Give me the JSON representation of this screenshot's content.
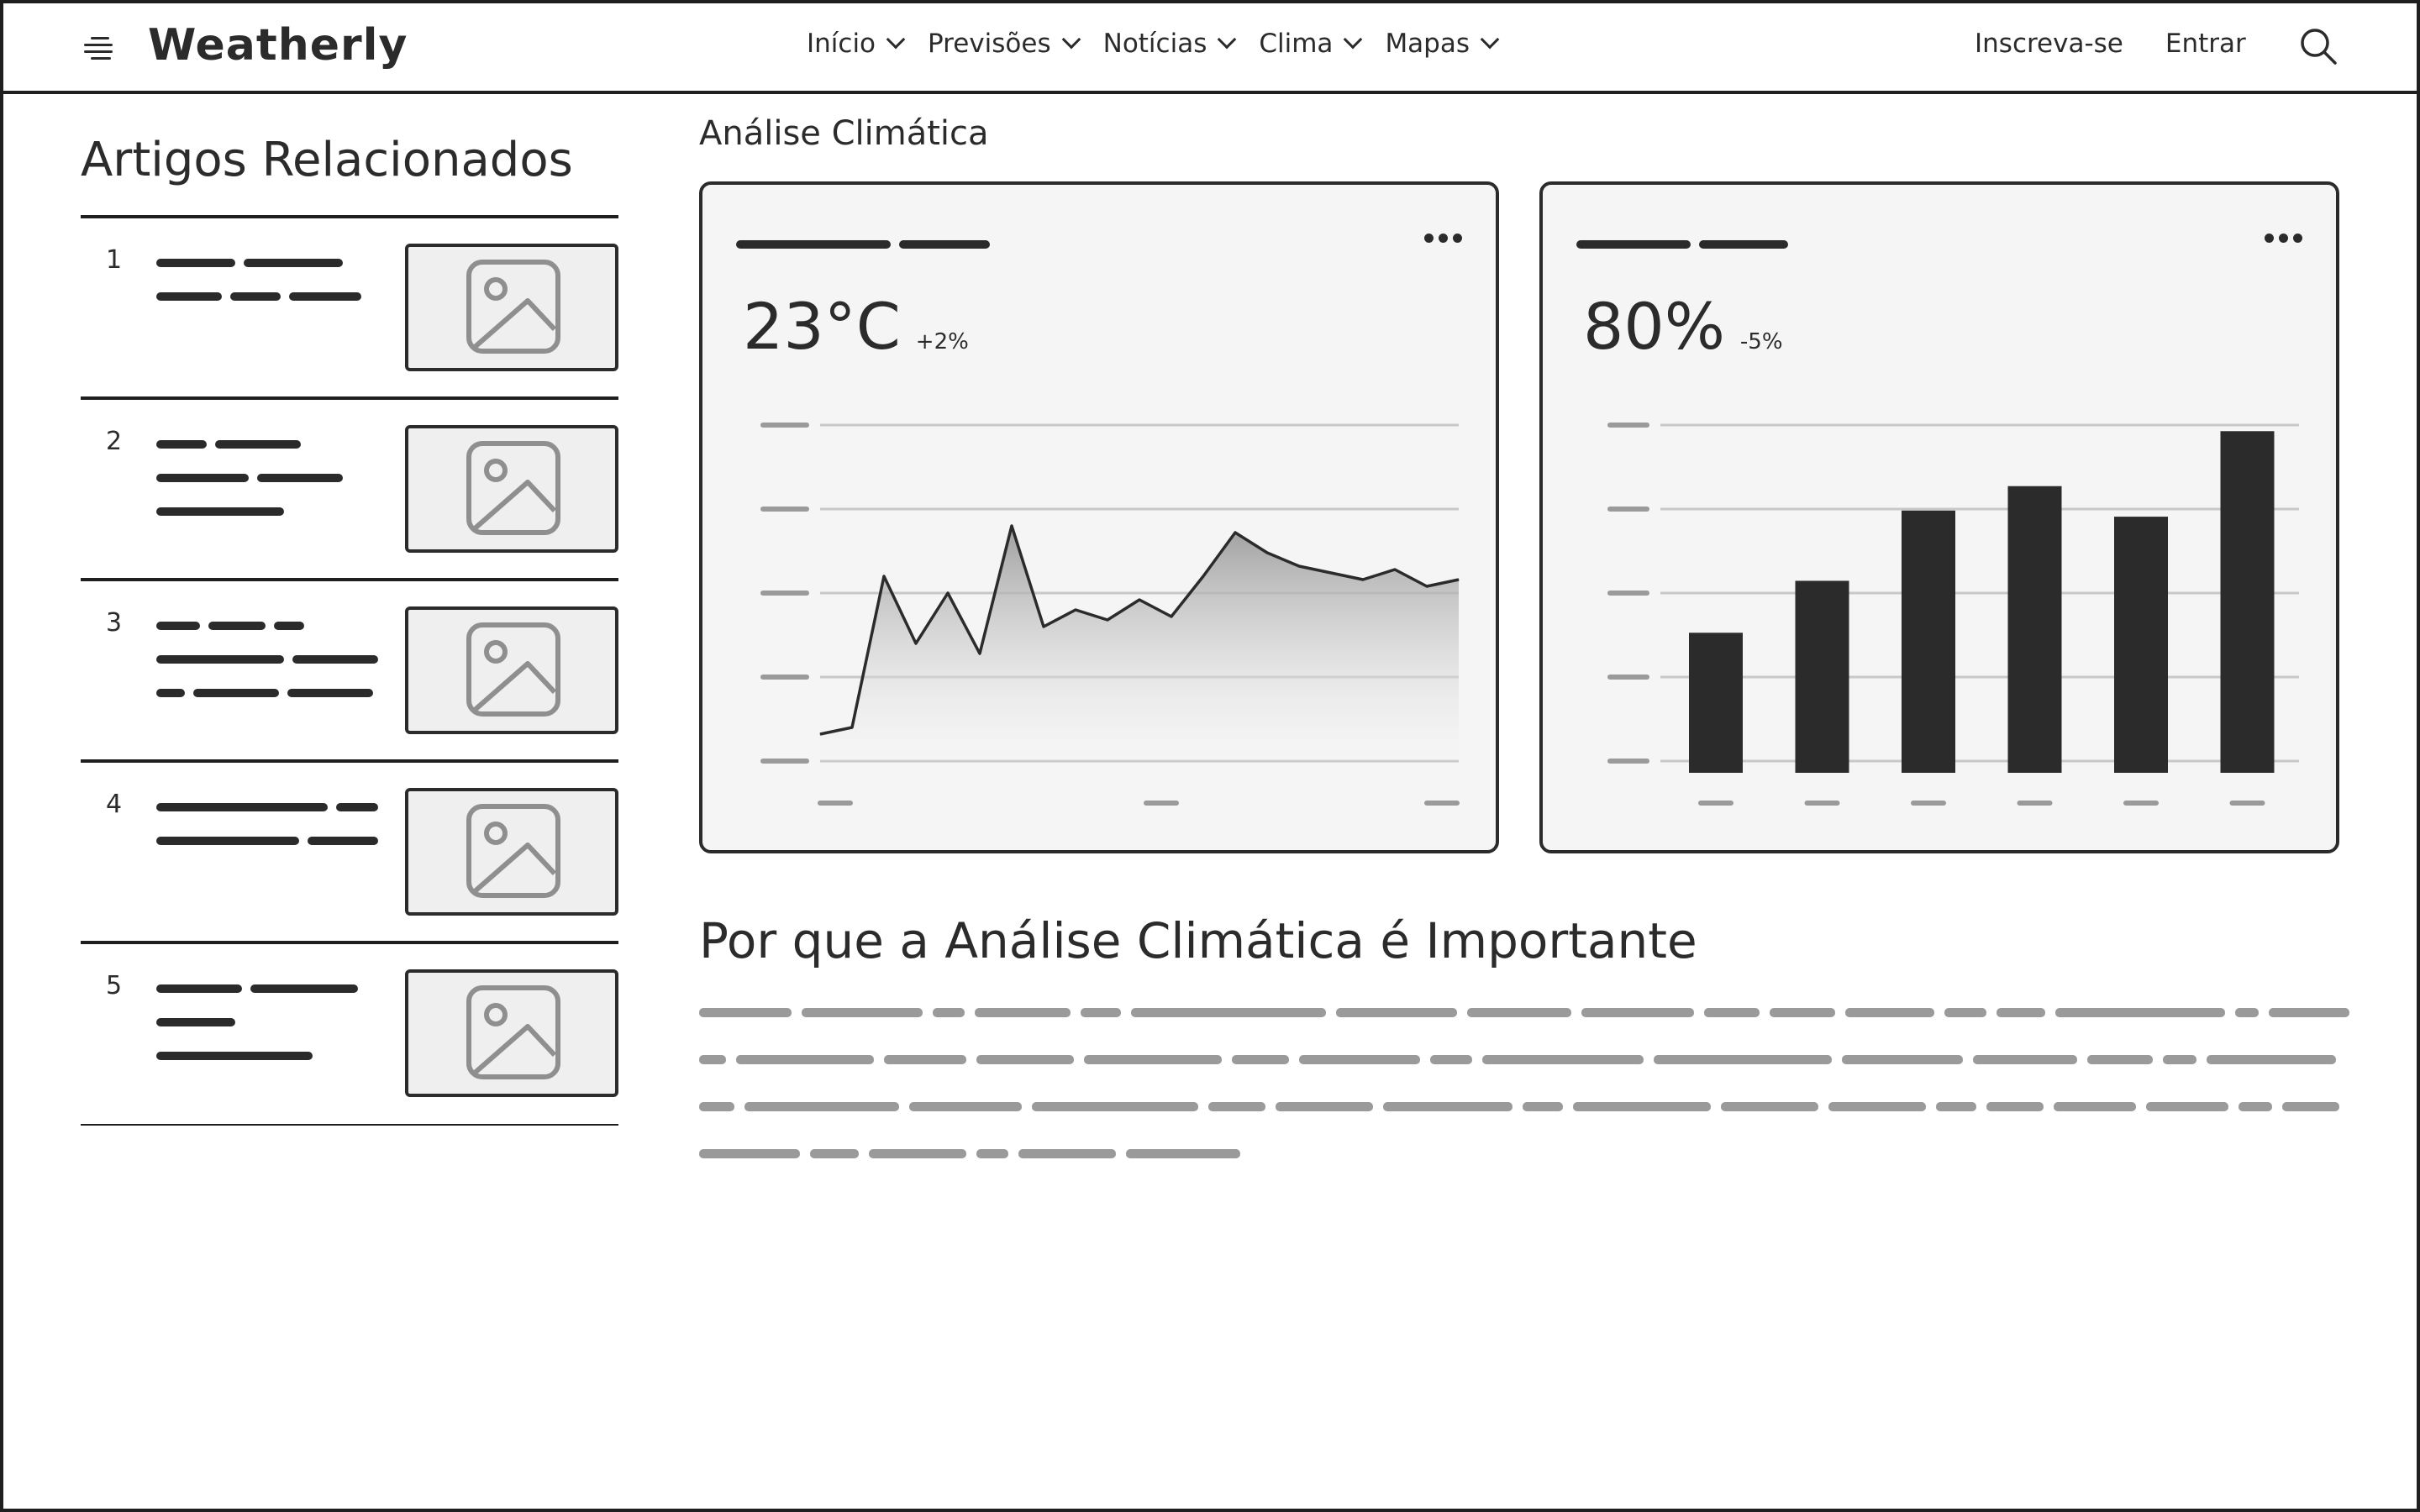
{
  "header": {
    "brand": "Weatherly",
    "nav": [
      {
        "label": "Início"
      },
      {
        "label": "Previsões"
      },
      {
        "label": "Notícias"
      },
      {
        "label": "Clima"
      },
      {
        "label": "Mapas"
      }
    ],
    "signup_label": "Inscreva-se",
    "login_label": "Entrar",
    "icons": {
      "menu": "hamburger-icon",
      "search": "search-icon"
    }
  },
  "sidebar": {
    "title": "Artigos Relacionados",
    "articles": [
      {
        "number": "1",
        "thumbnail": "image-placeholder-icon"
      },
      {
        "number": "2",
        "thumbnail": "image-placeholder-icon"
      },
      {
        "number": "3",
        "thumbnail": "image-placeholder-icon"
      },
      {
        "number": "4",
        "thumbnail": "image-placeholder-icon"
      },
      {
        "number": "5",
        "thumbnail": "image-placeholder-icon"
      }
    ]
  },
  "main": {
    "title": "Análise Climática",
    "section_heading": "Por que a Análise Climática é Importante"
  },
  "cards": {
    "temperature": {
      "value": "23°C",
      "delta": "+2%",
      "menu_icon": "more-icon"
    },
    "humidity": {
      "value": "80%",
      "delta": "-5%",
      "menu_icon": "more-icon"
    }
  },
  "chart_data": [
    {
      "type": "area",
      "title": "",
      "xlabel": "",
      "ylabel": "",
      "x": [
        0,
        1,
        2,
        3,
        4,
        5,
        6,
        7,
        8,
        9,
        10,
        11,
        12,
        13,
        14,
        15,
        16,
        17,
        18,
        19,
        20
      ],
      "values": [
        8,
        10,
        55,
        35,
        50,
        32,
        70,
        40,
        45,
        42,
        48,
        43,
        55,
        68,
        62,
        58,
        56,
        54,
        57,
        52,
        54
      ],
      "ylim": [
        0,
        100
      ],
      "grid": true,
      "fill": "gradient"
    },
    {
      "type": "bar",
      "title": "",
      "xlabel": "",
      "ylabel": "",
      "categories": [
        "",
        "",
        "",
        "",
        "",
        ""
      ],
      "values": [
        42,
        59,
        82,
        90,
        80,
        108
      ],
      "ylim": [
        0,
        110
      ],
      "grid": true,
      "colors": {
        "bar": "#2b2b2b"
      }
    }
  ]
}
